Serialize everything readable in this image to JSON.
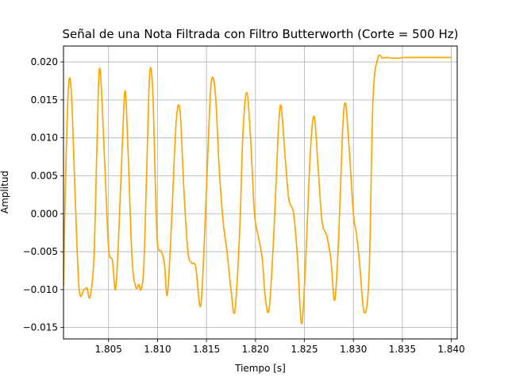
{
  "chart_data": {
    "type": "line",
    "title": "Señal de una Nota Filtrada con Filtro Butterworth (Corte = 500 Hz)",
    "xlabel": "Tiempo [s]",
    "ylabel": "Amplitud",
    "xlim": [
      1.8004,
      1.8406
    ],
    "ylim": [
      -0.0165,
      0.0221
    ],
    "xticks": [
      1.805,
      1.81,
      1.815,
      1.82,
      1.825,
      1.83,
      1.835,
      1.84
    ],
    "xtick_labels": [
      "1.805",
      "1.810",
      "1.815",
      "1.820",
      "1.825",
      "1.830",
      "1.835",
      "1.840"
    ],
    "yticks": [
      -0.015,
      -0.01,
      -0.005,
      0.0,
      0.005,
      0.01,
      0.015,
      0.02
    ],
    "ytick_labels": [
      "−0.015",
      "−0.010",
      "−0.005",
      "0.000",
      "0.005",
      "0.010",
      "0.015",
      "0.020"
    ],
    "grid": true,
    "legend": "none",
    "color": "#ffa500",
    "series": [
      {
        "x": [
          1.8004,
          1.8006,
          1.8009,
          1.8012,
          1.8016,
          1.802,
          1.8025,
          1.8028,
          1.8031,
          1.8035,
          1.8038,
          1.8041,
          1.8046,
          1.805,
          1.8054,
          1.8057,
          1.806,
          1.8064,
          1.8067,
          1.807,
          1.8074,
          1.8078,
          1.8081,
          1.8083,
          1.8086,
          1.8089,
          1.8092,
          1.8095,
          1.8098,
          1.81,
          1.8104,
          1.8107,
          1.811,
          1.8114,
          1.8119,
          1.8123,
          1.8127,
          1.8131,
          1.8135,
          1.8139,
          1.8144,
          1.8148,
          1.8152,
          1.8155,
          1.8159,
          1.8163,
          1.8167,
          1.8171,
          1.8175,
          1.8179,
          1.8184,
          1.8187,
          1.8191,
          1.8195,
          1.8199,
          1.8203,
          1.8207,
          1.821,
          1.8214,
          1.8219,
          1.8223,
          1.8226,
          1.823,
          1.8234,
          1.8239,
          1.8243,
          1.8247,
          1.8251,
          1.8256,
          1.826,
          1.8264,
          1.8268,
          1.8273,
          1.8277,
          1.8281,
          1.8285,
          1.8289,
          1.8292,
          1.8296,
          1.83,
          1.8303,
          1.8306,
          1.8311,
          1.8316,
          1.832,
          1.8325,
          1.833,
          1.8334,
          1.8339,
          1.8343,
          1.8347,
          1.8352,
          1.8357,
          1.8361,
          1.8366,
          1.837,
          1.8374,
          1.8378,
          1.8383,
          1.8388,
          1.8392,
          1.8396,
          1.84
        ],
        "y": [
          -0.0095,
          0.004,
          0.0165,
          0.016,
          0.002,
          -0.01,
          -0.01,
          -0.0098,
          -0.011,
          -0.006,
          0.008,
          0.0192,
          0.007,
          -0.0045,
          -0.0062,
          -0.01,
          -0.004,
          0.009,
          0.0162,
          0.008,
          -0.006,
          -0.0097,
          -0.0093,
          -0.01,
          -0.007,
          0.006,
          0.0184,
          0.0165,
          0.003,
          -0.004,
          -0.005,
          -0.0065,
          -0.0107,
          -0.002,
          0.012,
          0.0135,
          0.003,
          -0.005,
          -0.0065,
          -0.007,
          -0.0122,
          -0.003,
          0.01,
          0.0175,
          0.016,
          0.006,
          -0.001,
          -0.005,
          -0.01,
          -0.0128,
          -0.002,
          0.01,
          0.016,
          0.01,
          0.0,
          -0.003,
          -0.006,
          -0.011,
          -0.0125,
          -0.002,
          0.01,
          0.0143,
          0.008,
          0.002,
          0.0,
          -0.006,
          -0.0145,
          -0.007,
          0.008,
          0.0128,
          0.006,
          -0.001,
          -0.003,
          -0.006,
          -0.0114,
          -0.003,
          0.011,
          0.0145,
          0.008,
          0.0,
          -0.0025,
          -0.006,
          -0.013,
          -0.008,
          0.015,
          0.0205,
          0.0205,
          0.0206,
          0.0205,
          0.0205,
          0.0205,
          0.0206,
          0.0206,
          0.0206,
          0.0206,
          0.0206,
          0.0206,
          0.0206,
          0.0206,
          0.0206,
          0.0206,
          0.0206,
          0.0206
        ]
      }
    ]
  }
}
